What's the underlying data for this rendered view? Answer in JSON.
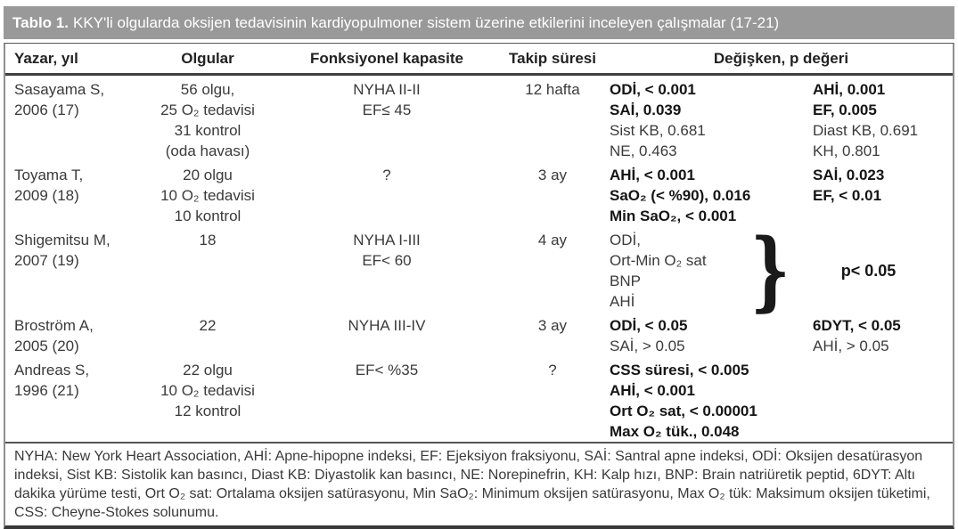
{
  "title": {
    "label": "Tablo 1.",
    "text": "KKY'li olgularda oksijen tedavisinin kardiyopulmoner sistem üzerine etkilerini inceleyen çalışmalar (17-21)"
  },
  "columns": {
    "yazar": "Yazar, yıl",
    "olgular": "Olgular",
    "fonksiyonel": "Fonksiyonel kapasite",
    "takip": "Takip süresi",
    "degisken": "Değişken, p değeri"
  },
  "rows": [
    {
      "yazar": [
        "Sasayama S,",
        "2006 (17)"
      ],
      "olgular": [
        "56 olgu,",
        "25 O₂ tedavisi",
        "31 kontrol",
        "(oda havası)"
      ],
      "fonksiyonel": [
        "NYHA II-II",
        "EF≤ 45"
      ],
      "takip": "12 hafta",
      "vleft": [
        "ODİ, < 0.001",
        "SAİ, 0.039",
        "Sist KB, 0.681",
        "NE, 0.463"
      ],
      "vright": [
        "AHİ, 0.001",
        "EF, 0.005",
        "Diast KB, 0.691",
        "KH, 0.801"
      ]
    },
    {
      "yazar": [
        "Toyama T,",
        "2009 (18)"
      ],
      "olgular": [
        "20 olgu",
        "10 O₂ tedavisi",
        "10 kontrol"
      ],
      "fonksiyonel": [
        "?"
      ],
      "takip": "3 ay",
      "vleft": [
        "AHİ, < 0.001",
        "SaO₂ (< %90), 0.016",
        "Min SaO₂, < 0.001"
      ],
      "vright": [
        "SAİ, 0.023",
        "EF, < 0.01"
      ]
    },
    {
      "yazar": [
        "Shigemitsu M,",
        "2007 (19)"
      ],
      "olgular": [
        "18"
      ],
      "fonksiyonel": [
        "NYHA I-III",
        "EF< 60"
      ],
      "takip": "4 ay",
      "vleft": [
        "ODİ,",
        "Ort-Min O₂ sat",
        "BNP",
        "AHİ"
      ],
      "brace": "}",
      "pvalue": "p< 0.05"
    },
    {
      "yazar": [
        "Broström A,",
        "2005 (20)"
      ],
      "olgular": [
        "22"
      ],
      "fonksiyonel": [
        "NYHA III-IV"
      ],
      "takip": "3 ay",
      "vleft": [
        "ODİ, < 0.05",
        "SAİ,  > 0.05"
      ],
      "vright": [
        "6DYT, < 0.05",
        "AHİ,  > 0.05"
      ]
    },
    {
      "yazar": [
        "Andreas S,",
        "1996 (21)"
      ],
      "olgular": [
        "22 olgu",
        "10 O₂ tedavisi",
        "12 kontrol"
      ],
      "fonksiyonel": [
        "EF< %35"
      ],
      "takip": "?",
      "vleft": [
        "CSS süresi, < 0.005",
        "AHİ, < 0.001",
        "Ort O₂ sat, < 0.00001",
        "Max O₂ tük., 0.048"
      ],
      "vright": []
    }
  ],
  "footnote": "NYHA: New York Heart Association, AHİ: Apne-hipopne indeksi, EF: Ejeksiyon fraksiyonu, SAİ: Santral apne indeksi, ODİ: Oksijen desatürasyon indeksi, Sist KB: Sistolik kan basıncı, Diast KB: Diyastolik kan basıncı, NE: Norepinefrin, KH: Kalp hızı, BNP: Brain natriüretik peptid, 6DYT: Altı dakika yürüme testi, Ort O₂ sat: Ortalama oksijen satürasyonu, Min SaO₂: Minimum oksijen satürasyonu, Max O₂ tük: Maksimum oksijen tüketimi, CSS: Cheyne-Stokes solunumu.",
  "colors": {
    "titlebar_bg": "#999999",
    "titlebar_text": "#ffffff",
    "body_text": "#3a3a3a",
    "bold_text": "#151515",
    "rule": "#3f3f3f"
  }
}
